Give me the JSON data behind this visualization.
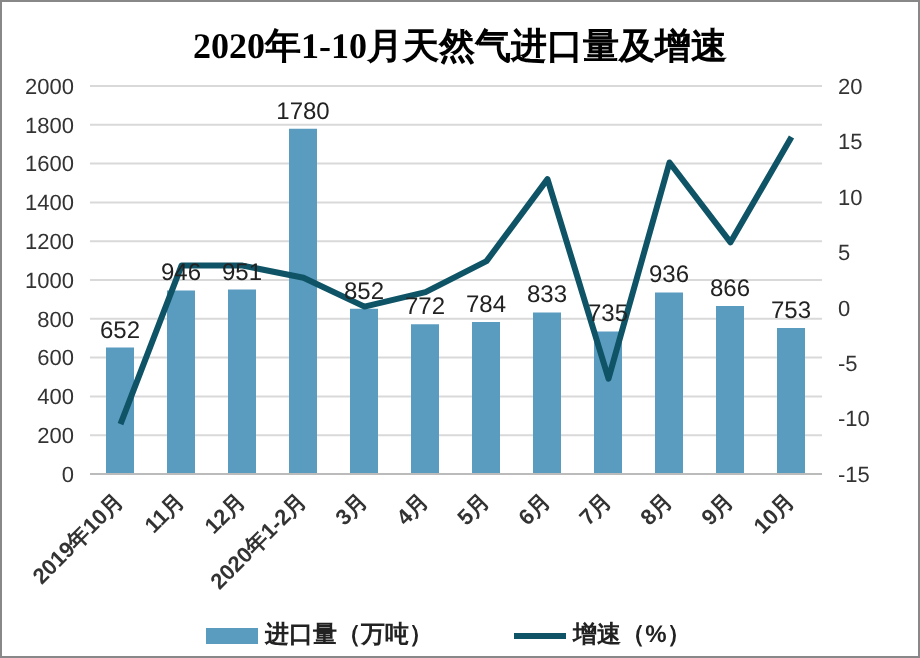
{
  "chart_data": {
    "type": "bar",
    "title": "2020年1-10月天然气进口量及增速",
    "categories": [
      "2019年10月",
      "11月",
      "12月",
      "2020年1-2月",
      "3月",
      "4月",
      "5月",
      "6月",
      "7月",
      "8月",
      "9月",
      "10月"
    ],
    "series": [
      {
        "name": "进口量（万吨）",
        "color": "#5a9cc0",
        "values": [
          652,
          946,
          951,
          1780,
          852,
          772,
          784,
          833,
          735,
          936,
          866,
          753
        ],
        "value_labels": [
          "652",
          "946",
          "951",
          "1780",
          "852",
          "772",
          "784",
          "833",
          "735",
          "936",
          "866",
          "753"
        ]
      },
      {
        "name": "增速（%）",
        "type": "line",
        "axis": "y2",
        "color": "#0e5466",
        "values": [
          -10.5,
          3.8,
          3.8,
          2.7,
          0.1,
          1.4,
          4.2,
          11.6,
          -6.4,
          13.1,
          5.9,
          15.4
        ]
      }
    ],
    "ylim": [
      0,
      2000
    ],
    "yticks": [
      0,
      200,
      400,
      600,
      800,
      1000,
      1200,
      1400,
      1600,
      1800,
      2000
    ],
    "y2lim": [
      -15,
      20
    ],
    "y2ticks": [
      -15,
      -10,
      -5,
      0,
      5,
      10,
      15,
      20
    ],
    "grid": "y",
    "legend": "bottom",
    "marker": "none"
  }
}
